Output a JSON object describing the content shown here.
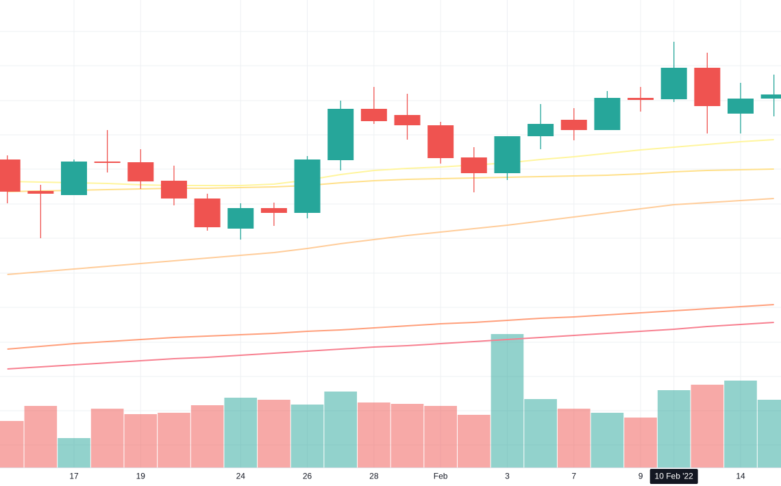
{
  "chart_data": {
    "type": "candlestick",
    "categories": [
      null,
      null,
      "17",
      null,
      "19",
      null,
      null,
      "24",
      null,
      "26",
      null,
      "28",
      null,
      "Feb",
      null,
      "3",
      null,
      "7",
      null,
      "9",
      "10 Feb '22",
      null,
      "14",
      null
    ],
    "open": [
      450,
      404,
      398,
      447,
      446,
      419,
      393,
      349,
      379,
      372,
      449,
      524,
      515,
      500,
      453,
      430,
      484,
      508,
      493,
      540,
      538,
      584,
      517,
      539
    ],
    "high": [
      456,
      413,
      450,
      493,
      465,
      441,
      400,
      386,
      387,
      455,
      536,
      556,
      546,
      505,
      468,
      484,
      531,
      525,
      550,
      556,
      622,
      606,
      562,
      574
    ],
    "low": [
      386,
      335,
      398,
      431,
      407,
      383,
      346,
      333,
      353,
      364,
      434,
      502,
      479,
      444,
      402,
      420,
      465,
      478,
      493,
      520,
      534,
      488,
      488,
      513
    ],
    "close": [
      403,
      400,
      447,
      445,
      418,
      393,
      351,
      379,
      372,
      450,
      524,
      506,
      500,
      452,
      430,
      484,
      502,
      493,
      540,
      537,
      584,
      528,
      539,
      545
    ],
    "volume": [
      68,
      90,
      43,
      86,
      78,
      80,
      91,
      102,
      99,
      92,
      111,
      95,
      93,
      90,
      77,
      195,
      100,
      86,
      80,
      73,
      113,
      121,
      127,
      99
    ],
    "up_color": "#26a69a",
    "down_color": "#ef5350",
    "series": [
      {
        "color": "#fff59d",
        "values": [
          418,
          417,
          416,
          415,
          413,
          412,
          412,
          412,
          414,
          420,
          428,
          434,
          437,
          439,
          442,
          445,
          450,
          454,
          459,
          464,
          468,
          472,
          476,
          479
        ]
      },
      {
        "color": "#ffe08a",
        "values": [
          403,
          404,
          405,
          406,
          407,
          408,
          408,
          409,
          410,
          412,
          416,
          419,
          421,
          422,
          423,
          424,
          425,
          426,
          427,
          429,
          432,
          434,
          435,
          436
        ]
      },
      {
        "color": "#ffcc99",
        "values": [
          282,
          286,
          290,
          294,
          298,
          302,
          306,
          310,
          314,
          320,
          327,
          333,
          339,
          344,
          349,
          354,
          360,
          366,
          372,
          378,
          384,
          387,
          390,
          393
        ]
      },
      {
        "color": "#ff9e7a",
        "values": [
          173,
          177,
          181,
          184,
          187,
          190,
          192,
          194,
          196,
          199,
          201,
          204,
          207,
          210,
          212,
          215,
          218,
          220,
          223,
          226,
          229,
          232,
          235,
          238
        ]
      },
      {
        "color": "#f77f8f",
        "values": [
          144,
          147,
          150,
          153,
          156,
          159,
          161,
          164,
          167,
          170,
          173,
          176,
          178,
          181,
          184,
          187,
          190,
          193,
          196,
          199,
          202,
          206,
          209,
          212
        ]
      }
    ],
    "highlight_index": 20,
    "ylim": [
      0,
      683
    ],
    "yticks": [
      33,
      83,
      133,
      183,
      234,
      284,
      335,
      385,
      436,
      486,
      536,
      587,
      637
    ],
    "grid": true
  }
}
